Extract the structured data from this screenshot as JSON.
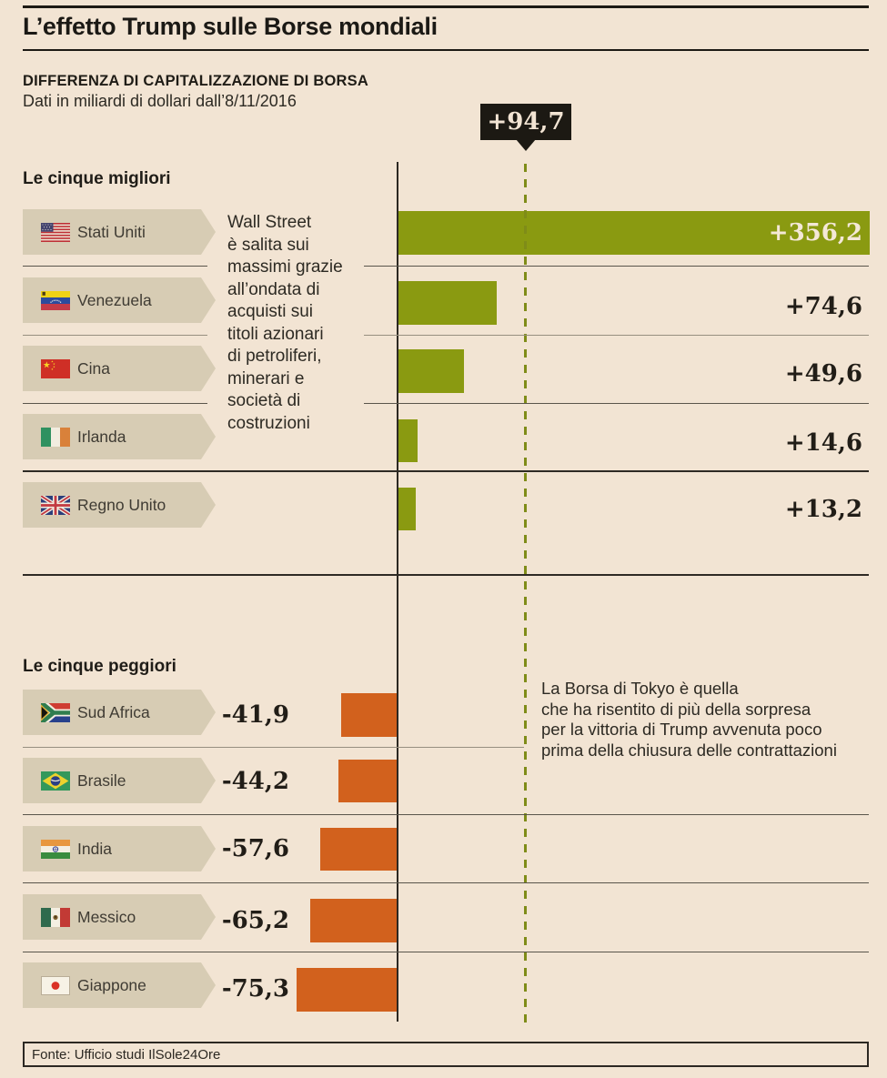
{
  "page": {
    "title": "L’effetto Trump sulle Borse mondiali",
    "subtitle": "DIFFERENZA DI CAPITALIZZAZIONE DI BORSA",
    "subtitle2": "Dati in miliardi di dollari dall’8/11/2016",
    "source": "Fonte: Ufficio studi IlSole24Ore"
  },
  "colors": {
    "background": "#f2e4d3",
    "positive_bar": "#8a9a11",
    "negative_bar": "#d2611d",
    "label_box": "#d7ccb4",
    "badge_bg": "#1c1913",
    "badge_text": "#f2e4d3",
    "reference_dash": "#7f8c18",
    "ink": "#211d17"
  },
  "callout": {
    "value": "+94,7"
  },
  "chart_data": {
    "type": "bar",
    "title": "L’effetto Trump sulle Borse mondiali",
    "subtitle": "Differenza di capitalizzazione di Borsa",
    "unit": "miliardi di dollari dall’8/11/2016",
    "reference_line_value": 94.7,
    "reference_line_label": "+94,7",
    "baseline": 0,
    "best": {
      "heading": "Le cinque migliori",
      "annotation": "Wall Street\nè salita sui\nmassimi grazie\nall’ondata di\nacquisti sui\ntitoli azionari\ndi petroliferi,\nminerari e\nsocietà di\ncostruzioni",
      "rows": [
        {
          "country": "Stati Uniti",
          "value": 356.2,
          "display": "+356,2"
        },
        {
          "country": "Venezuela",
          "value": 74.6,
          "display": "+74,6"
        },
        {
          "country": "Cina",
          "value": 49.6,
          "display": "+49,6"
        },
        {
          "country": "Irlanda",
          "value": 14.6,
          "display": "+14,6"
        },
        {
          "country": "Regno Unito",
          "value": 13.2,
          "display": "+13,2"
        }
      ]
    },
    "worst": {
      "heading": "Le cinque peggiori",
      "annotation": "La Borsa di Tokyo è quella\nche ha risentito di più della sorpresa\nper la vittoria di Trump avvenuta poco\nprima della chiusura delle contrattazioni",
      "rows": [
        {
          "country": "Sud Africa",
          "value": -41.9,
          "display": "-41,9"
        },
        {
          "country": "Brasile",
          "value": -44.2,
          "display": "-44,2"
        },
        {
          "country": "India",
          "value": -57.6,
          "display": "-57,6"
        },
        {
          "country": "Messico",
          "value": -65.2,
          "display": "-65,2"
        },
        {
          "country": "Giappone",
          "value": -75.3,
          "display": "-75,3"
        }
      ]
    }
  }
}
